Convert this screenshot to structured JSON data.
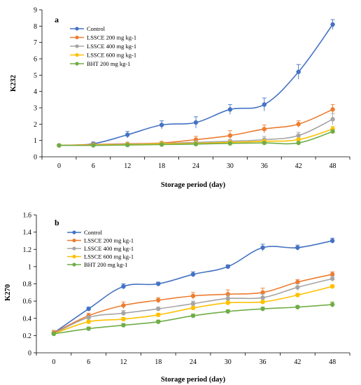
{
  "chart_data": [
    {
      "type": "line",
      "panel_label": "a",
      "ylabel": "K232",
      "xlabel": "Storage period (day)",
      "x": [
        0,
        6,
        12,
        18,
        24,
        30,
        36,
        42,
        48
      ],
      "ylim": [
        0,
        9
      ],
      "yticks": [
        0,
        1,
        2,
        3,
        4,
        5,
        6,
        7,
        8,
        9
      ],
      "legend_position": "top-left",
      "series": [
        {
          "name": "Control",
          "color": "#4472C4",
          "values": [
            0.7,
            0.8,
            1.35,
            1.95,
            2.1,
            2.9,
            3.2,
            5.2,
            8.1
          ],
          "errors": [
            0.05,
            0.1,
            0.2,
            0.25,
            0.35,
            0.3,
            0.4,
            0.45,
            0.3
          ]
        },
        {
          "name": "LSSCE 200  mg kg-1",
          "color": "#ED7D31",
          "values": [
            0.7,
            0.75,
            0.8,
            0.85,
            1.05,
            1.3,
            1.7,
            2.0,
            2.9
          ],
          "errors": [
            0.05,
            0.05,
            0.05,
            0.05,
            0.2,
            0.3,
            0.25,
            0.2,
            0.3
          ]
        },
        {
          "name": "LSSCE 400  mg kg-1",
          "color": "#A5A5A5",
          "values": [
            0.7,
            0.72,
            0.78,
            0.82,
            0.88,
            0.95,
            1.05,
            1.3,
            2.3
          ],
          "errors": [
            0.05,
            0.05,
            0.05,
            0.05,
            0.08,
            0.1,
            0.2,
            0.2,
            0.35
          ]
        },
        {
          "name": "LSSCE 600  mg kg-1",
          "color": "#FFC000",
          "values": [
            0.7,
            0.72,
            0.75,
            0.8,
            0.82,
            0.88,
            0.95,
            1.05,
            1.7
          ],
          "errors": [
            0.05,
            0.05,
            0.05,
            0.05,
            0.05,
            0.05,
            0.08,
            0.1,
            0.15
          ]
        },
        {
          "name": "BHT 200  mg kg-1",
          "color": "#70AD47",
          "values": [
            0.7,
            0.7,
            0.72,
            0.75,
            0.78,
            0.82,
            0.85,
            0.85,
            1.55
          ],
          "errors": [
            0.05,
            0.05,
            0.05,
            0.05,
            0.05,
            0.05,
            0.05,
            0.05,
            0.1
          ]
        }
      ]
    },
    {
      "type": "line",
      "panel_label": "b",
      "ylabel": "K270",
      "xlabel": "Storage period (day)",
      "x": [
        0,
        6,
        12,
        18,
        24,
        30,
        36,
        42,
        48
      ],
      "ylim": [
        0,
        1.6
      ],
      "yticks": [
        0,
        0.2,
        0.4,
        0.6,
        0.8,
        1,
        1.2,
        1.4,
        1.6
      ],
      "legend_position": "top-left",
      "series": [
        {
          "name": "Control",
          "color": "#4472C4",
          "values": [
            0.23,
            0.51,
            0.77,
            0.8,
            0.91,
            1.0,
            1.22,
            1.22,
            1.3
          ],
          "errors": [
            0.03,
            0.02,
            0.03,
            0.02,
            0.03,
            0.02,
            0.04,
            0.03,
            0.03
          ]
        },
        {
          "name": "LSSCE 200  mg kg-1",
          "color": "#ED7D31",
          "values": [
            0.23,
            0.43,
            0.55,
            0.61,
            0.66,
            0.68,
            0.7,
            0.82,
            0.91
          ],
          "errors": [
            0.03,
            0.03,
            0.04,
            0.03,
            0.04,
            0.05,
            0.05,
            0.03,
            0.03
          ]
        },
        {
          "name": "LSSCE 400  mg kg-1",
          "color": "#A5A5A5",
          "values": [
            0.22,
            0.41,
            0.46,
            0.51,
            0.57,
            0.63,
            0.64,
            0.76,
            0.86
          ],
          "errors": [
            0.02,
            0.02,
            0.03,
            0.02,
            0.03,
            0.04,
            0.04,
            0.04,
            0.03
          ]
        },
        {
          "name": "LSSCE 600  mg kg-1",
          "color": "#FFC000",
          "values": [
            0.22,
            0.36,
            0.39,
            0.44,
            0.52,
            0.58,
            0.59,
            0.67,
            0.77
          ],
          "errors": [
            0.02,
            0.02,
            0.02,
            0.02,
            0.02,
            0.02,
            0.02,
            0.02,
            0.02
          ]
        },
        {
          "name": "BHT 200  mg kg-1",
          "color": "#70AD47",
          "values": [
            0.22,
            0.28,
            0.32,
            0.36,
            0.43,
            0.48,
            0.51,
            0.53,
            0.56
          ],
          "errors": [
            0.02,
            0.02,
            0.02,
            0.02,
            0.02,
            0.02,
            0.02,
            0.02,
            0.03
          ]
        }
      ]
    }
  ]
}
